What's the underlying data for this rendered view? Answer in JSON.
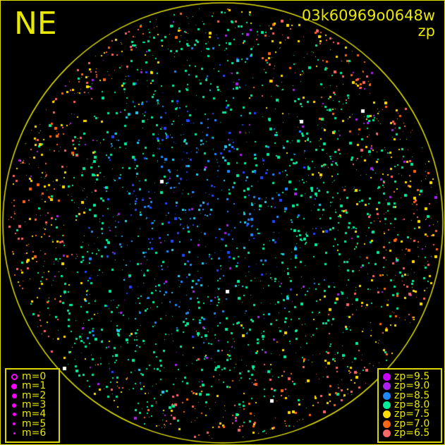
{
  "header": {
    "direction": "NE",
    "filename": "03k60969o0648w",
    "mode": "zp"
  },
  "colors": {
    "frame": "#e0e000",
    "horizon": "#e0e000",
    "text": "#e8e800"
  },
  "magnitude_legend": [
    {
      "label": "m=0",
      "size": 9,
      "ring": true
    },
    {
      "label": "m=1",
      "size": 8
    },
    {
      "label": "m=2",
      "size": 7
    },
    {
      "label": "m=3",
      "size": 6
    },
    {
      "label": "m=4",
      "size": 5
    },
    {
      "label": "m=5",
      "size": 4
    },
    {
      "label": "m=6",
      "size": 3
    }
  ],
  "zp_legend": [
    {
      "label": "zp=9.5",
      "color": "#cc00ff"
    },
    {
      "label": "zp=9.0",
      "color": "#aa22ee"
    },
    {
      "label": "zp=8.5",
      "color": "#1e88ff"
    },
    {
      "label": "zp=8.0",
      "color": "#00ee99"
    },
    {
      "label": "zp=7.5",
      "color": "#ffdd00"
    },
    {
      "label": "zp=7.0",
      "color": "#ff6611"
    },
    {
      "label": "zp=6.5",
      "color": "#ff6666"
    }
  ]
}
